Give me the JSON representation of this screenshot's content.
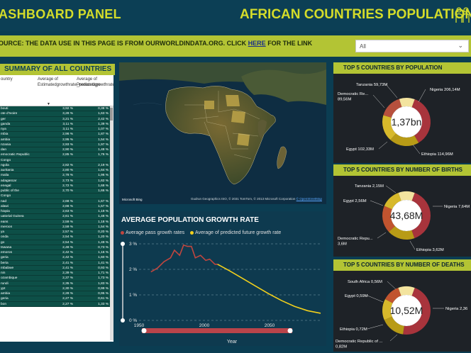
{
  "header": {
    "title_left": "ASHBOARD PANEL",
    "title_right": "AFRICAN COUNTRIES POPULATION"
  },
  "source": {
    "text_before": "OURCE: THE DATA USE IN THIS PAGE IS FROM OURWORLDINDATA.ORG. CLICK ",
    "link": "HERE",
    "text_after": " FOR THE LINK"
  },
  "slicer": {
    "value": "All"
  },
  "summary": {
    "title": "SUMMARY OF ALL COUNTRIES",
    "col0": "ountry",
    "col1": "Average of Estimatedgrowthrate_percentage",
    "col2": "Average of Predictedgrowthrate_percentage",
    "rows": [
      [
        "bouti",
        "3,92 %",
        "0,38 %"
      ],
      [
        "ote d'Ivoire",
        "3,28 %",
        "1,63 %"
      ],
      [
        "ger",
        "3,21 %",
        "2,42 %"
      ],
      [
        "ganda",
        "3,11 %",
        "1,39 %"
      ],
      [
        "nya",
        "3,11 %",
        "1,07 %"
      ],
      [
        "mbia",
        "2,96 %",
        "1,87 %"
      ],
      [
        "ambia",
        "2,95 %",
        "1,54 %"
      ],
      [
        "nzania",
        "2,93 %",
        "1,97 %"
      ],
      [
        "dan",
        "2,90 %",
        "1,48 %"
      ],
      [
        "emocratic Republic",
        "2,85 %",
        "1,76 %"
      ],
      [
        "Congo",
        "",
        ""
      ],
      [
        "ngola",
        "2,82 %",
        "2,19 %"
      ],
      [
        "auritania",
        "2,80 %",
        "1,64 %"
      ],
      [
        "malia",
        "2,78 %",
        "1,96 %"
      ],
      [
        "adagascar",
        "2,73 %",
        "1,62 %"
      ],
      [
        "enegal",
        "2,72 %",
        "1,68 %"
      ],
      [
        "public of the",
        "2,70 %",
        "1,66 %"
      ],
      [
        "Congo",
        "",
        ""
      ],
      [
        "nad",
        "2,68 %",
        "1,67 %"
      ],
      [
        "alawi",
        "2,66 %",
        "1,57 %"
      ],
      [
        "hiopia",
        "2,63 %",
        "1,19 %"
      ],
      [
        "uatorial Guinea",
        "2,61 %",
        "1,48 %"
      ],
      [
        "eans",
        "2,59 %",
        "1,18 %"
      ],
      [
        "meroon",
        "2,59 %",
        "1,54 %"
      ],
      [
        "ya",
        "2,57 %",
        "0,20 %"
      ],
      [
        "onda",
        "2,54 %",
        "1,20 %"
      ],
      [
        "go",
        "2,54 %",
        "1,49 %"
      ],
      [
        "tswana",
        "2,48 %",
        "0,73 %"
      ],
      [
        "emoros",
        "2,42 %",
        "1,16 %"
      ],
      [
        "geria",
        "2,42 %",
        "1,60 %"
      ],
      [
        "beria",
        "2,41 %",
        "1,41 %"
      ],
      [
        "mbabwe",
        "2,41 %",
        "0,93 %"
      ],
      [
        "nin",
        "2,39 %",
        "1,71 %"
      ],
      [
        "ozambique",
        "2,37 %",
        "1,73 %"
      ],
      [
        "rundi",
        "2,35 %",
        "1,83 %"
      ],
      [
        "ypt",
        "2,30 %",
        "0,99 %"
      ],
      [
        "ambia",
        "2,28 %",
        "0,95 %"
      ],
      [
        "geria",
        "2,27 %",
        "0,61 %"
      ],
      [
        "bon",
        "2,27 %",
        "1,33 %"
      ]
    ]
  },
  "map": {
    "credit": "Gudrun Geographics ISO, © 2031 TomTom, © 2013 Microsoft Corporation",
    "osm": "© OpenStreetMap",
    "brand": "Microsoft Bing"
  },
  "linechart": {
    "title": "AVERAGE POPULATION GROWTH RATE",
    "legend_past": "Average pass growth rates",
    "legend_future": "Average of predicted future growth rate",
    "xlabel": "Year",
    "color_past": "#c0463f",
    "color_future": "#f2d01c"
  },
  "chart_data": [
    {
      "type": "line",
      "title": "AVERAGE POPULATION GROWTH RATE",
      "xlabel": "Year",
      "ylabel": "",
      "xlim": [
        1950,
        2100
      ],
      "ylim": [
        0,
        3
      ],
      "xticks": [
        "1950",
        "2000",
        "2050"
      ],
      "yticks": [
        "0 %",
        "1 %",
        "2 %",
        "3 %"
      ],
      "series": [
        {
          "name": "Average pass growth rates",
          "x": [
            1970,
            1975,
            1980,
            1985,
            1988,
            1992,
            1995,
            1998,
            2001,
            2004,
            2008,
            2012,
            2015,
            2019,
            2021
          ],
          "y": [
            1.9,
            2.05,
            2.3,
            2.45,
            2.75,
            2.55,
            2.95,
            2.9,
            2.9,
            2.45,
            2.55,
            2.35,
            2.4,
            2.2,
            2.2
          ]
        },
        {
          "name": "Average of predicted future growth rate",
          "x": [
            2021,
            2030,
            2040,
            2050,
            2060,
            2070,
            2080,
            2090,
            2100
          ],
          "y": [
            2.2,
            1.95,
            1.65,
            1.35,
            1.05,
            0.78,
            0.55,
            0.38,
            0.28
          ]
        }
      ]
    },
    {
      "type": "pie",
      "title": "TOP 5 COUNTRIES BY POPULATION",
      "center_label": "1,37bn",
      "slices": [
        {
          "label": "Nigeria 206,14M",
          "value": 206.14,
          "color": "#a8343c"
        },
        {
          "label": "Ethiopia 114,96M",
          "value": 114.96,
          "color": "#b89b16"
        },
        {
          "label": "Egypt 102,33M",
          "value": 102.33,
          "color": "#d7b92b"
        },
        {
          "label": "Democratic Re... 89,56M",
          "value": 89.56,
          "color": "#b7503d"
        },
        {
          "label": "Tanzania 59,73M",
          "value": 59.73,
          "color": "#f3e49f"
        }
      ]
    },
    {
      "type": "pie",
      "title": "TOP 5 COUNTRIES BY NUMBER OF BIRTHS",
      "center_label": "43,68M",
      "slices": [
        {
          "label": "Nigeria 7,64M",
          "value": 7.64,
          "color": "#a8343c"
        },
        {
          "label": "Ethiopia 3,62M",
          "value": 3.62,
          "color": "#b89b16"
        },
        {
          "label": "Democratic Repu... 3,6M",
          "value": 3.6,
          "color": "#c1542f"
        },
        {
          "label": "Egypt 2,56M",
          "value": 2.56,
          "color": "#d7b92b"
        },
        {
          "label": "Tanzania 2,15M",
          "value": 2.15,
          "color": "#f3e49f"
        }
      ]
    },
    {
      "type": "pie",
      "title": "TOP 5 COUNTRIES BY NUMBER OF DEATHS",
      "center_label": "10,52M",
      "slices": [
        {
          "label": "Nigeria 2,36",
          "value": 2.36,
          "color": "#a8343c"
        },
        {
          "label": "Democratic Republic of ... 0,82M",
          "value": 0.82,
          "color": "#b89b16"
        },
        {
          "label": "Ethiopia 0,72M",
          "value": 0.72,
          "color": "#d7b92b"
        },
        {
          "label": "Egypt 0,59M",
          "value": 0.59,
          "color": "#c1542f"
        },
        {
          "label": "South Africa 0,56M",
          "value": 0.56,
          "color": "#f3e49f"
        }
      ]
    }
  ]
}
